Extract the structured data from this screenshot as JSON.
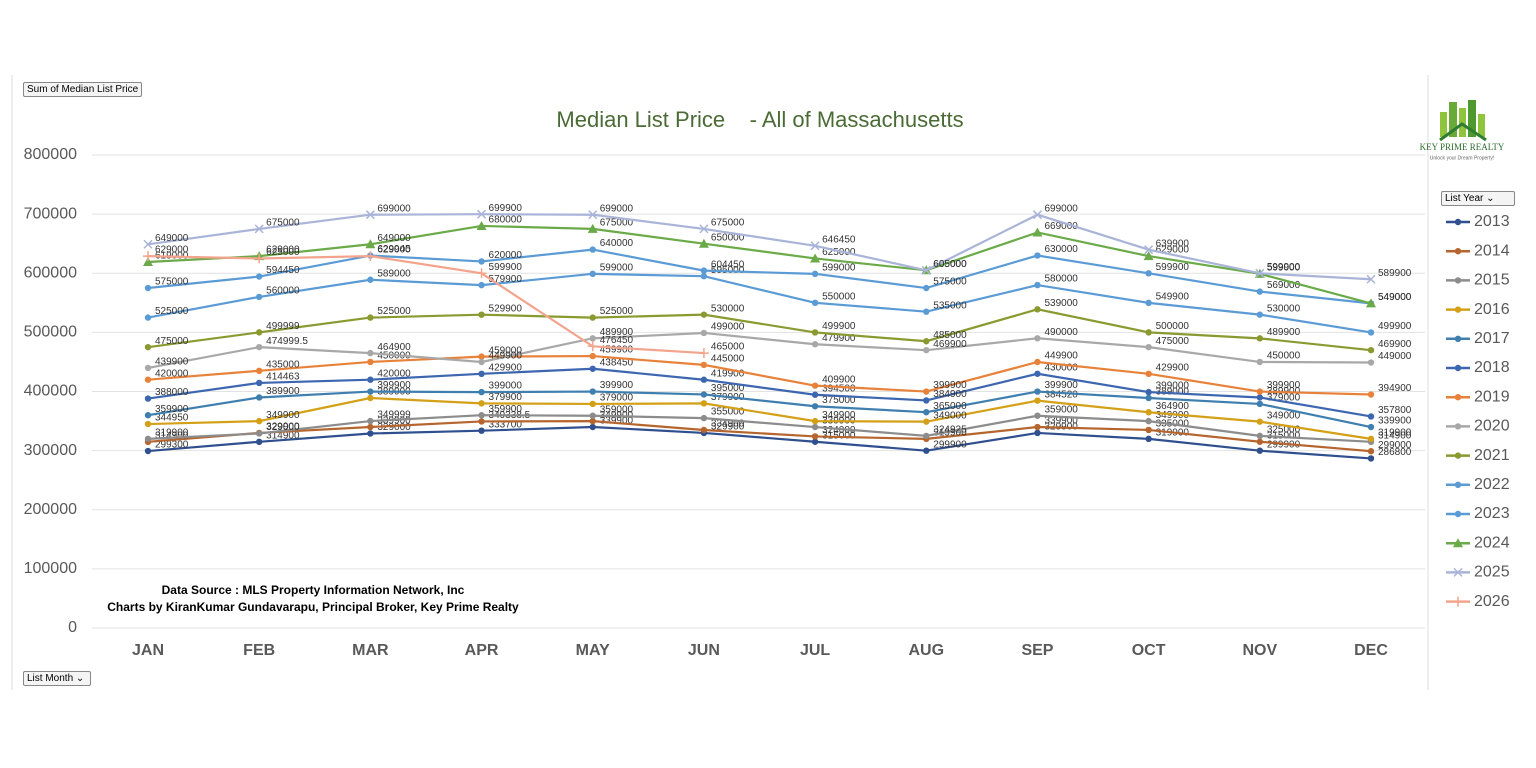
{
  "controls": {
    "value_button": "Sum of Median List Price",
    "year_filter": "List Year",
    "month_filter": "List Month"
  },
  "logo": {
    "name": "KEY PRIME REALTY",
    "tagline": "Unlock your Dream Property!"
  },
  "chart_data": {
    "type": "line",
    "title": "Median List Price    - All of Massachusetts",
    "annotations": [
      "Data Source : MLS Property Information Network, Inc",
      "Charts by KiranKumar Gundavarapu, Principal Broker, Key Prime Realty"
    ],
    "categories": [
      "JAN",
      "FEB",
      "MAR",
      "APR",
      "MAY",
      "JUN",
      "JUL",
      "AUG",
      "SEP",
      "OCT",
      "NOV",
      "DEC"
    ],
    "ylim": [
      0,
      800000
    ],
    "yticks": [
      0,
      100000,
      200000,
      300000,
      400000,
      500000,
      600000,
      700000,
      800000
    ],
    "grid": true,
    "legend": "right",
    "series": [
      {
        "name": "2013",
        "color": "#2f4f8f",
        "marker": "circle",
        "values": [
          299300,
          314900,
          329000,
          333700,
          339900,
          329900,
          315000,
          299900,
          329900,
          319900,
          299900,
          286800
        ]
      },
      {
        "name": "2014",
        "color": "#b5652d",
        "marker": "circle",
        "values": [
          314900,
          329900,
          339900,
          349338.5,
          349900,
          334900,
          324000,
          319900,
          339900,
          335000,
          315000,
          299000
        ]
      },
      {
        "name": "2015",
        "color": "#8c8c8c",
        "marker": "circle",
        "values": [
          319900,
          329000,
          349999,
          359900,
          359000,
          355000,
          339900,
          324925,
          359000,
          349900,
          325000,
          314900
        ]
      },
      {
        "name": "2016",
        "color": "#d4a017",
        "marker": "circle",
        "values": [
          344950,
          349900,
          389000,
          379900,
          379000,
          379900,
          349900,
          349000,
          384520,
          364900,
          349000,
          319900
        ]
      },
      {
        "name": "2017",
        "color": "#3f7fb0",
        "marker": "circle",
        "values": [
          359900,
          389900,
          399900,
          399000,
          399900,
          395000,
          375000,
          365000,
          399900,
          389000,
          379000,
          339900
        ]
      },
      {
        "name": "2018",
        "color": "#3d66b0",
        "marker": "circle",
        "values": [
          388000,
          414463,
          420000,
          429900,
          438450,
          419900,
          394500,
          384900,
          430000,
          399000,
          389900,
          357800
        ]
      },
      {
        "name": "2019",
        "color": "#e8823a",
        "marker": "circle",
        "values": [
          420000,
          435000,
          450000,
          459000,
          459900,
          445000,
          409900,
          399900,
          449900,
          429900,
          399900,
          394900
        ]
      },
      {
        "name": "2020",
        "color": "#a8a8a8",
        "marker": "circle",
        "values": [
          439900,
          474999.5,
          464900,
          449900,
          489900,
          499000,
          479900,
          469900,
          490000,
          475000,
          450000,
          449000
        ]
      },
      {
        "name": "2021",
        "color": "#8a9a30",
        "marker": "circle",
        "values": [
          475000,
          499999,
          525000,
          529900,
          525000,
          530000,
          499900,
          485000,
          539000,
          500000,
          489900,
          469900
        ]
      },
      {
        "name": "2022",
        "color": "#5b9bd5",
        "marker": "circle",
        "values": [
          525000,
          560000,
          589000,
          579900,
          599000,
          595000,
          550000,
          535000,
          580000,
          549900,
          530000,
          499900
        ]
      },
      {
        "name": "2023",
        "color": "#5b9bd5",
        "marker": "circle",
        "values": [
          575000,
          594450,
          629945,
          620000,
          640000,
          604450,
          599000,
          575000,
          630000,
          599900,
          569000,
          549000
        ]
      },
      {
        "name": "2024",
        "color": "#6aaa48",
        "marker": "triangle",
        "values": [
          619000,
          629000,
          649000,
          680000,
          675000,
          650000,
          625000,
          605000,
          669000,
          629000,
          599000,
          549000
        ]
      },
      {
        "name": "2025",
        "color": "#a9b4d8",
        "marker": "x",
        "values": [
          649000,
          675000,
          699000,
          699900,
          699000,
          675000,
          646450,
          605000,
          699000,
          639900,
          599900,
          589900
        ]
      },
      {
        "name": "2026",
        "color": "#f2a48c",
        "marker": "plus",
        "values": [
          629000,
          625000,
          629000,
          599900,
          476450,
          465000,
          null,
          null,
          null,
          null,
          null,
          null
        ]
      }
    ]
  }
}
